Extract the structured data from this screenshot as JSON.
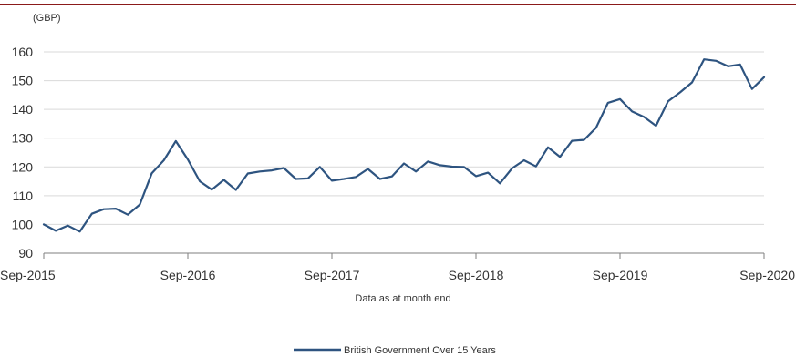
{
  "colors": {
    "series": "#2e5480",
    "top_rule": "#8b1a1a",
    "grid": "#d9d9d9",
    "axis": "#7f7f7f"
  },
  "chart_data": {
    "type": "line",
    "unit_label": "(GBP)",
    "note": "Data as at month end",
    "grid": true,
    "legend_position": "bottom-center",
    "ylim": [
      90,
      160
    ],
    "yticks": [
      "90",
      "100",
      "110",
      "120",
      "130",
      "140",
      "150",
      "160"
    ],
    "xlim": [
      "Sep-2015",
      "Sep-2020"
    ],
    "xticks": [
      "Sep-2015",
      "Sep-2016",
      "Sep-2017",
      "Sep-2018",
      "Sep-2019",
      "Sep-2020"
    ],
    "series": [
      {
        "name": "British Government Over 15 Years",
        "color": "#2e5480",
        "x": [
          "Sep-2015",
          "Oct-2015",
          "Nov-2015",
          "Dec-2015",
          "Jan-2016",
          "Feb-2016",
          "Mar-2016",
          "Apr-2016",
          "May-2016",
          "Jun-2016",
          "Jul-2016",
          "Aug-2016",
          "Sep-2016",
          "Oct-2016",
          "Nov-2016",
          "Dec-2016",
          "Jan-2017",
          "Feb-2017",
          "Mar-2017",
          "Apr-2017",
          "May-2017",
          "Jun-2017",
          "Jul-2017",
          "Aug-2017",
          "Sep-2017",
          "Oct-2017",
          "Nov-2017",
          "Dec-2017",
          "Jan-2018",
          "Feb-2018",
          "Mar-2018",
          "Apr-2018",
          "May-2018",
          "Jun-2018",
          "Jul-2018",
          "Aug-2018",
          "Sep-2018",
          "Oct-2018",
          "Nov-2018",
          "Dec-2018",
          "Jan-2019",
          "Feb-2019",
          "Mar-2019",
          "Apr-2019",
          "May-2019",
          "Jun-2019",
          "Jul-2019",
          "Aug-2019",
          "Sep-2019",
          "Oct-2019",
          "Nov-2019",
          "Dec-2019",
          "Jan-2020",
          "Feb-2020",
          "Mar-2020",
          "Apr-2020",
          "May-2020",
          "Jun-2020",
          "Jul-2020",
          "Aug-2020",
          "Sep-2020"
        ],
        "values": [
          100.0,
          97.8,
          99.6,
          97.5,
          103.7,
          105.3,
          105.5,
          103.4,
          106.9,
          117.8,
          122.3,
          129.0,
          122.6,
          115.0,
          112.1,
          115.5,
          112.0,
          117.7,
          118.4,
          118.8,
          119.6,
          115.8,
          116.0,
          120.0,
          115.2,
          115.8,
          116.5,
          119.3,
          115.8,
          116.7,
          121.2,
          118.4,
          121.9,
          120.6,
          120.1,
          120.0,
          116.8,
          118.0,
          114.3,
          119.5,
          122.3,
          120.2,
          126.8,
          123.5,
          129.1,
          129.4,
          133.6,
          142.3,
          143.6,
          139.3,
          137.4,
          134.3,
          142.8,
          145.9,
          149.4,
          157.4,
          156.9,
          155.0,
          155.6,
          147.1,
          151.2
        ]
      }
    ]
  }
}
